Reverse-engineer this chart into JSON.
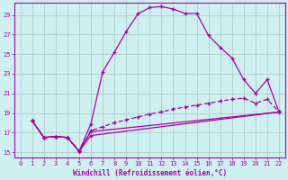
{
  "xlabel": "Windchill (Refroidissement éolien,°C)",
  "bg_color": "#cef0f0",
  "grid_color": "#b0cccc",
  "line_color": "#aa00aa",
  "xlim": [
    -0.5,
    22.5
  ],
  "ylim": [
    14.5,
    30.2
  ],
  "xticks": [
    0,
    1,
    2,
    3,
    4,
    5,
    6,
    7,
    8,
    9,
    10,
    11,
    12,
    13,
    14,
    15,
    16,
    17,
    18,
    19,
    20,
    21,
    22
  ],
  "yticks": [
    15,
    17,
    19,
    21,
    23,
    25,
    27,
    29
  ],
  "line1_x": [
    1,
    2,
    3,
    4,
    5,
    6,
    7,
    8,
    9,
    10,
    11,
    12,
    13,
    14,
    15,
    16,
    17,
    18,
    19,
    20,
    21,
    22
  ],
  "line1_y": [
    18.2,
    16.5,
    16.6,
    16.5,
    15.1,
    17.9,
    23.2,
    25.2,
    27.3,
    29.1,
    29.75,
    29.85,
    29.6,
    29.15,
    29.15,
    26.9,
    25.7,
    24.6,
    22.4,
    21.0,
    22.4,
    19.1
  ],
  "line2_x": [
    1,
    2,
    3,
    4,
    5,
    6,
    7,
    8,
    9,
    10,
    11,
    12,
    13,
    14,
    15,
    16,
    17,
    18,
    19,
    20,
    21,
    22
  ],
  "line2_y": [
    18.2,
    16.5,
    16.6,
    16.5,
    15.1,
    17.2,
    17.6,
    18.0,
    18.3,
    18.6,
    18.9,
    19.1,
    19.4,
    19.6,
    19.8,
    20.0,
    20.2,
    20.4,
    20.5,
    20.0,
    20.4,
    19.1
  ],
  "line3_x": [
    1,
    2,
    3,
    4,
    5,
    6,
    22
  ],
  "line3_y": [
    18.2,
    16.5,
    16.6,
    16.5,
    15.1,
    17.1,
    19.1
  ],
  "line4_x": [
    1,
    2,
    3,
    4,
    5,
    6,
    22
  ],
  "line4_y": [
    18.2,
    16.5,
    16.6,
    16.5,
    15.1,
    16.7,
    19.1
  ]
}
